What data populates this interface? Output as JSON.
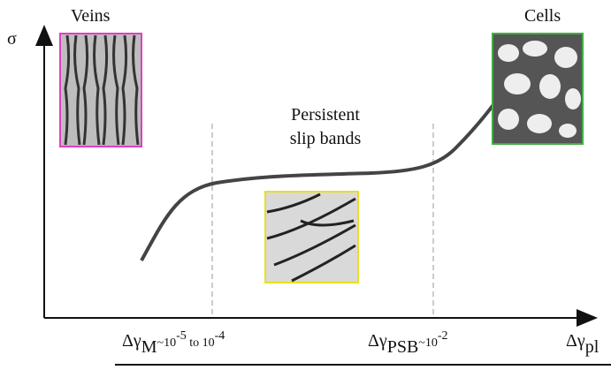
{
  "axes": {
    "y_label": "σ",
    "x_label": {
      "symbol": "Δγ",
      "subscript": "pl"
    }
  },
  "regions": [
    {
      "label": "Veins"
    },
    {
      "label": [
        "Persistent",
        "slip bands"
      ]
    },
    {
      "label": "Cells"
    }
  ],
  "thresholds": [
    {
      "symbol": "Δγ",
      "subscript": "M",
      "text1": "~10",
      "exp1": "-5",
      "text2": " to 10",
      "exp2": "-4"
    },
    {
      "symbol": "Δγ",
      "subscript": "PSB",
      "text1": "~10",
      "exp1": "-2"
    }
  ]
}
